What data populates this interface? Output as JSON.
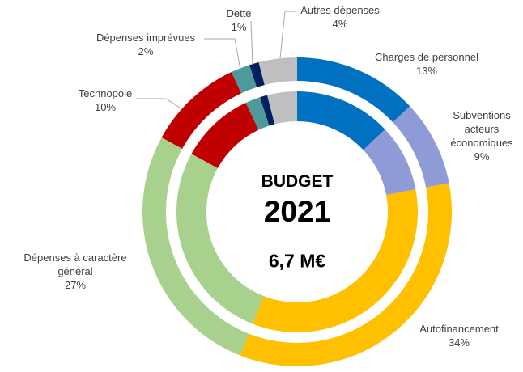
{
  "chart_data": {
    "type": "donut",
    "center_texts": [
      "BUDGET",
      "2021",
      "6,7 M€"
    ],
    "categories": [
      "Charges de personnel",
      "Subventions acteurs économiques",
      "Autofinancement",
      "Dépenses à caractère général",
      "Technopole",
      "Dépenses imprévues",
      "Dette",
      "Autres dépenses"
    ],
    "values": [
      13,
      9,
      34,
      27,
      10,
      2,
      1,
      4
    ],
    "value_labels": [
      "13%",
      "9%",
      "34%",
      "27%",
      "10%",
      "2%",
      "1%",
      "4%"
    ],
    "colors": [
      "#0070c0",
      "#8e9bd6",
      "#ffc000",
      "#a9d18e",
      "#c00000",
      "#4e9a9a",
      "#002060",
      "#bfbfbf"
    ]
  }
}
